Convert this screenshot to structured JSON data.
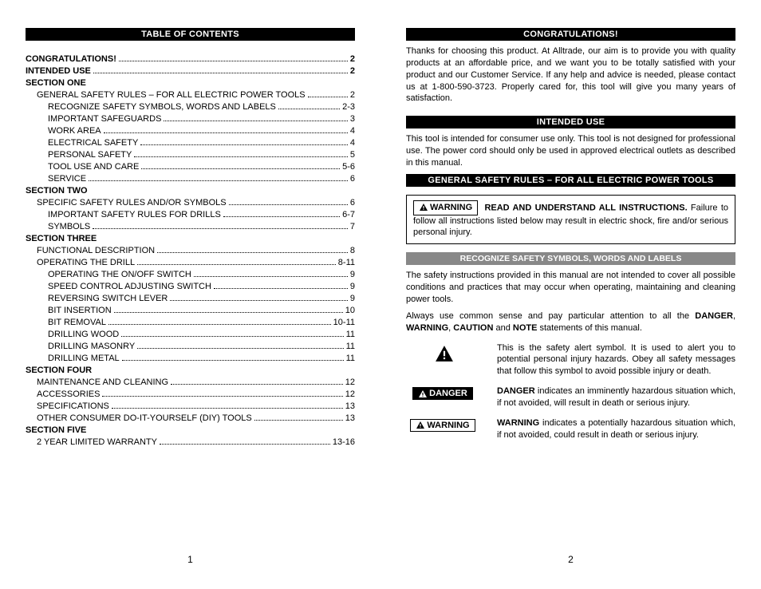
{
  "page1": {
    "title": "TABLE OF CONTENTS",
    "pagenum": "1",
    "rows": [
      {
        "label": "CONGRATULATIONS!",
        "page": "2",
        "bold": true,
        "indent": 0
      },
      {
        "label": "INTENDED USE",
        "page": "2",
        "bold": true,
        "indent": 0
      },
      {
        "head": "SECTION ONE"
      },
      {
        "label": "GENERAL SAFETY RULES – FOR ALL ELECTRIC POWER TOOLS",
        "page": "2",
        "indent": 1
      },
      {
        "label": "RECOGNIZE SAFETY SYMBOLS, WORDS AND LABELS",
        "page": "2-3",
        "indent": 2
      },
      {
        "label": "IMPORTANT SAFEGUARDS",
        "page": "3",
        "indent": 2
      },
      {
        "label": "WORK AREA",
        "page": "4",
        "indent": 2
      },
      {
        "label": "ELECTRICAL SAFETY",
        "page": "4",
        "indent": 2
      },
      {
        "label": "PERSONAL SAFETY",
        "page": "5",
        "indent": 2
      },
      {
        "label": "TOOL USE AND CARE",
        "page": "5-6",
        "indent": 2
      },
      {
        "label": "SERVICE",
        "page": "6",
        "indent": 2
      },
      {
        "head": "SECTION TWO"
      },
      {
        "label": "SPECIFIC SAFETY RULES AND/OR SYMBOLS",
        "page": "6",
        "indent": 1
      },
      {
        "label": "IMPORTANT SAFETY RULES FOR DRILLS",
        "page": "6-7",
        "indent": 2
      },
      {
        "label": "SYMBOLS",
        "page": "7",
        "indent": 2
      },
      {
        "head": "SECTION THREE"
      },
      {
        "label": "FUNCTIONAL DESCRIPTION",
        "page": "8",
        "indent": 1
      },
      {
        "label": "OPERATING THE DRILL",
        "page": "8-11",
        "indent": 1
      },
      {
        "label": "OPERATING THE ON/OFF SWITCH",
        "page": "9",
        "indent": 2
      },
      {
        "label": "SPEED CONTROL ADJUSTING SWITCH",
        "page": "9",
        "indent": 2
      },
      {
        "label": "REVERSING SWITCH LEVER",
        "page": "9",
        "indent": 2
      },
      {
        "label": "BIT INSERTION",
        "page": "10",
        "indent": 2
      },
      {
        "label": "BIT REMOVAL",
        "page": "10-11",
        "indent": 2
      },
      {
        "label": "DRILLING WOOD",
        "page": "11",
        "indent": 2
      },
      {
        "label": "DRILLING MASONRY",
        "page": "11",
        "indent": 2
      },
      {
        "label": "DRILLING METAL",
        "page": "11",
        "indent": 2
      },
      {
        "head": "SECTION FOUR"
      },
      {
        "label": "MAINTENANCE AND CLEANING",
        "page": "12",
        "indent": 1
      },
      {
        "label": "ACCESSORIES",
        "page": "12",
        "indent": 1
      },
      {
        "label": "SPECIFICATIONS",
        "page": "13",
        "indent": 1
      },
      {
        "label": "OTHER CONSUMER DO-IT-YOURSELF (DIY) TOOLS",
        "page": "13",
        "indent": 1
      },
      {
        "head": "SECTION FIVE"
      },
      {
        "label": "2 YEAR LIMITED WARRANTY",
        "page": "13-16",
        "indent": 1
      }
    ]
  },
  "page2": {
    "pagenum": "2",
    "congrats_title": "CONGRATULATIONS!",
    "congrats_text": "Thanks for choosing this product. At Alltrade, our aim is to provide you with quality products at an affordable price, and we want you to be totally satisfied with your product and our Customer Service. If any help and advice is needed, please contact us at 1-800-590-3723. Properly cared for, this tool will give you many years of satisfaction.",
    "intended_title": "INTENDED USE",
    "intended_text": "This tool is intended for consumer use only. This tool is not designed for professional use. The power cord should only be used in approved electrical outlets as described in this manual.",
    "safety_title": "GENERAL SAFETY RULES – FOR ALL ELECTRIC POWER TOOLS",
    "warn_label": "WARNING",
    "warn_bold": "READ AND UNDERSTAND ALL INSTRUCTIONS.",
    "warn_rest": " Failure to follow all instructions listed below may result in electric shock, fire and/or serious personal injury.",
    "recognize_title": "RECOGNIZE SAFETY SYMBOLS, WORDS AND LABELS",
    "recognize_p1": "The safety instructions provided in this manual are not intended to cover all possible conditions and practices that may occur when operating, maintaining and cleaning power tools.",
    "recognize_p2a": "Always use common sense and pay particular attention to all the ",
    "recognize_p2_d": "DANGER",
    "recognize_p2_w": "WARNING",
    "recognize_p2_c": "CAUTION",
    "recognize_p2_n": "NOTE",
    "recognize_p2b": " statements of this manual.",
    "alert_text": "This is the safety alert symbol. It is used to alert you to potential personal injury hazards. Obey all safety messages that follow this symbol to avoid possible injury or death.",
    "danger_label": "DANGER",
    "danger_bold": "DANGER",
    "danger_text": " indicates an imminently hazardous situation which, if not avoided, will result in death or serious injury.",
    "warning_label": "WARNING",
    "warning_bold": "WARNING",
    "warning_text": " indicates a potentially hazardous situation which, if not avoided, could result in death or serious injury."
  },
  "colors": {
    "bar": "#000000",
    "subbar": "#888888",
    "text": "#000000"
  }
}
